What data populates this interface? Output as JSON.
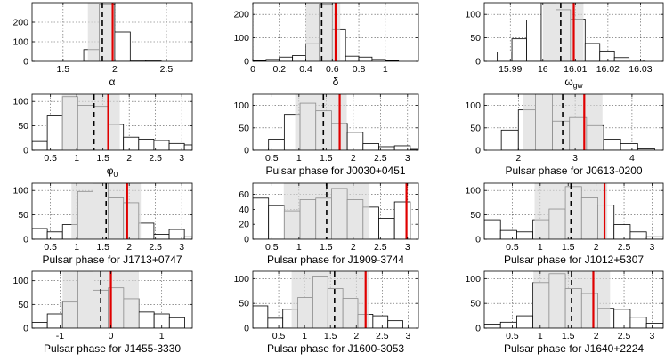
{
  "chart_data": [
    {
      "type": "bar",
      "xlabel": "α",
      "xlabel_sub": "",
      "xlim": [
        1.2,
        2.75
      ],
      "ylim": [
        0,
        300
      ],
      "xticks": [
        1.5,
        2,
        2.5
      ],
      "yticks": [
        0,
        100,
        200
      ],
      "bin_edges": [
        1.25,
        1.4,
        1.55,
        1.7,
        1.85,
        2.0,
        2.15,
        2.3,
        2.45,
        2.6,
        2.75
      ],
      "counts": [
        0,
        0,
        0,
        60,
        290,
        150,
        5,
        2,
        0,
        0
      ],
      "band": [
        1.74,
        1.97
      ],
      "median": 1.88,
      "truth": 1.98
    },
    {
      "type": "bar",
      "xlabel": "δ",
      "xlabel_sub": "",
      "xlim": [
        0,
        1.25
      ],
      "ylim": [
        0,
        250
      ],
      "xticks": [
        0,
        0.2,
        0.4,
        0.6,
        0.8,
        1
      ],
      "yticks": [
        0,
        100,
        200
      ],
      "bin_edges": [
        0,
        0.1,
        0.2,
        0.3,
        0.4,
        0.5,
        0.6,
        0.7,
        0.8,
        0.9,
        1.0,
        1.1
      ],
      "counts": [
        3,
        8,
        18,
        25,
        75,
        240,
        135,
        22,
        18,
        8,
        3
      ],
      "band": [
        0.4,
        0.66
      ],
      "median": 0.52,
      "truth": 0.625
    },
    {
      "type": "bar",
      "xlabel": "ω",
      "xlabel_sub": "gw",
      "xlim": [
        15.982,
        16.037
      ],
      "ylim": [
        0,
        125
      ],
      "xticks": [
        15.99,
        16,
        16.01,
        16.02,
        16.03
      ],
      "yticks": [
        0,
        50,
        100
      ],
      "bin_edges": [
        15.986,
        15.9905,
        15.995,
        15.9995,
        16.004,
        16.0085,
        16.013,
        16.0175,
        16.022,
        16.0265,
        16.031
      ],
      "counts": [
        20,
        48,
        88,
        125,
        110,
        90,
        38,
        22,
        8,
        3
      ],
      "band": [
        16.0,
        16.0125
      ],
      "median": 16.0055,
      "truth": 16.0095
    },
    {
      "type": "bar",
      "xlabel": "φ",
      "xlabel_sub": "0",
      "xlim": [
        0.15,
        3.2
      ],
      "ylim": [
        0,
        115
      ],
      "xticks": [
        0.5,
        1,
        1.5,
        2,
        2.5,
        3
      ],
      "yticks": [
        0,
        50,
        100
      ],
      "bin_edges": [
        0.15,
        0.44,
        0.73,
        1.02,
        1.31,
        1.6,
        1.89,
        2.18,
        2.47,
        2.76,
        3.05,
        3.2
      ],
      "counts": [
        18,
        72,
        110,
        92,
        90,
        53,
        27,
        23,
        20,
        14,
        11
      ],
      "band": [
        0.72,
        1.82
      ],
      "median": 1.33,
      "truth": 1.6
    },
    {
      "type": "bar",
      "xlabel": "Pulsar phase for J0030+0451",
      "xlabel_sub": "",
      "xlim": [
        0.15,
        3.2
      ],
      "ylim": [
        0,
        125
      ],
      "xticks": [
        0.5,
        1,
        1.5,
        2,
        2.5,
        3
      ],
      "yticks": [
        0,
        50,
        100
      ],
      "bin_edges": [
        0.15,
        0.44,
        0.73,
        1.02,
        1.31,
        1.6,
        1.89,
        2.18,
        2.47,
        2.76,
        3.05,
        3.2
      ],
      "counts": [
        5,
        25,
        80,
        105,
        88,
        60,
        40,
        15,
        8,
        10,
        2
      ],
      "band": [
        0.93,
        1.88
      ],
      "median": 1.45,
      "truth": 1.75
    },
    {
      "type": "bar",
      "xlabel": "Pulsar phase for J0613-0200",
      "xlabel_sub": "",
      "xlim": [
        1.4,
        4.55
      ],
      "ylim": [
        0,
        125
      ],
      "xticks": [
        2,
        3,
        4
      ],
      "yticks": [
        0,
        50,
        100
      ],
      "bin_edges": [
        1.4,
        1.7,
        2.0,
        2.3,
        2.6,
        2.9,
        3.2,
        3.5,
        3.8,
        4.1,
        4.4
      ],
      "counts": [
        0,
        45,
        90,
        125,
        65,
        73,
        55,
        25,
        15,
        3
      ],
      "band": [
        2.08,
        3.48
      ],
      "median": 2.78,
      "truth": 3.16
    },
    {
      "type": "bar",
      "xlabel": "Pulsar phase for J1713+0747",
      "xlabel_sub": "",
      "xlim": [
        0.15,
        3.2
      ],
      "ylim": [
        0,
        115
      ],
      "xticks": [
        0.5,
        1,
        1.5,
        2,
        2.5,
        3
      ],
      "yticks": [
        0,
        50,
        100
      ],
      "bin_edges": [
        0.15,
        0.44,
        0.73,
        1.02,
        1.31,
        1.6,
        1.89,
        2.18,
        2.47,
        2.76,
        3.05,
        3.2
      ],
      "counts": [
        22,
        15,
        30,
        98,
        115,
        85,
        75,
        33,
        10,
        20,
        5
      ],
      "band": [
        0.9,
        2.22
      ],
      "median": 1.56,
      "truth": 1.96
    },
    {
      "type": "bar",
      "xlabel": "Pulsar phase for J1909-3744",
      "xlabel_sub": "",
      "xlim": [
        0.15,
        3.2
      ],
      "ylim": [
        0,
        75
      ],
      "xticks": [
        0.5,
        1,
        1.5,
        2,
        2.5,
        3
      ],
      "yticks": [
        0,
        20,
        40,
        60
      ],
      "bin_edges": [
        0.15,
        0.44,
        0.73,
        1.02,
        1.31,
        1.6,
        1.89,
        2.18,
        2.47,
        2.76,
        3.05,
        3.2
      ],
      "counts": [
        55,
        45,
        38,
        53,
        55,
        68,
        53,
        43,
        28,
        50,
        0
      ],
      "band": [
        0.72,
        2.3
      ],
      "median": 1.51,
      "truth": 2.98
    },
    {
      "type": "bar",
      "xlabel": "Pulsar phase for J1012+5307",
      "xlabel_sub": "",
      "xlim": [
        0,
        3.2
      ],
      "ylim": [
        0,
        115
      ],
      "xticks": [
        0.5,
        1,
        1.5,
        2,
        2.5,
        3
      ],
      "yticks": [
        0,
        50,
        100
      ],
      "bin_edges": [
        0,
        0.29,
        0.58,
        0.87,
        1.16,
        1.45,
        1.74,
        2.03,
        2.32,
        2.61,
        2.9,
        3.2
      ],
      "counts": [
        40,
        18,
        15,
        40,
        62,
        108,
        85,
        70,
        30,
        15,
        5
      ],
      "band": [
        0.9,
        2.2
      ],
      "median": 1.55,
      "truth": 2.15
    },
    {
      "type": "bar",
      "xlabel": "Pulsar phase for J1455-3330",
      "xlabel_sub": "",
      "xlim": [
        -1.55,
        1.6
      ],
      "ylim": [
        0,
        120
      ],
      "xticks": [
        -1,
        0,
        1
      ],
      "yticks": [
        0,
        50,
        100
      ],
      "bin_edges": [
        -1.55,
        -1.25,
        -0.95,
        -0.65,
        -0.35,
        -0.05,
        0.25,
        0.55,
        0.85,
        1.15,
        1.45,
        1.6
      ],
      "counts": [
        12,
        30,
        55,
        120,
        80,
        85,
        62,
        34,
        30,
        22,
        0
      ],
      "band": [
        -0.95,
        0.55
      ],
      "median": -0.2,
      "truth": 0.0
    },
    {
      "type": "bar",
      "xlabel": "Pulsar phase for J1600-3053",
      "xlabel_sub": "",
      "xlim": [
        0,
        3.2
      ],
      "ylim": [
        0,
        115
      ],
      "xticks": [
        0.5,
        1,
        1.5,
        2,
        2.5,
        3
      ],
      "yticks": [
        0,
        50,
        100
      ],
      "bin_edges": [
        0,
        0.29,
        0.58,
        0.87,
        1.16,
        1.45,
        1.74,
        2.03,
        2.32,
        2.61,
        2.9,
        3.2
      ],
      "counts": [
        45,
        20,
        38,
        62,
        105,
        80,
        60,
        28,
        25,
        15,
        0
      ],
      "band": [
        0.75,
        2.25
      ],
      "median": 1.58,
      "truth": 2.18
    },
    {
      "type": "bar",
      "xlabel": "Pulsar phase for J1640+2224",
      "xlabel_sub": "",
      "xlim": [
        0,
        3.2
      ],
      "ylim": [
        0,
        115
      ],
      "xticks": [
        0.5,
        1,
        1.5,
        2,
        2.5,
        3
      ],
      "yticks": [
        0,
        50,
        100
      ],
      "bin_edges": [
        0,
        0.29,
        0.58,
        0.87,
        1.16,
        1.45,
        1.74,
        2.03,
        2.32,
        2.61,
        2.9,
        3.2
      ],
      "counts": [
        8,
        12,
        25,
        92,
        110,
        80,
        70,
        40,
        38,
        22,
        10
      ],
      "band": [
        0.88,
        2.25
      ],
      "median": 1.56,
      "truth": 1.95
    }
  ],
  "colors": {
    "truth": "#e00000",
    "band": "#d9d9d9",
    "median": "#000000"
  }
}
